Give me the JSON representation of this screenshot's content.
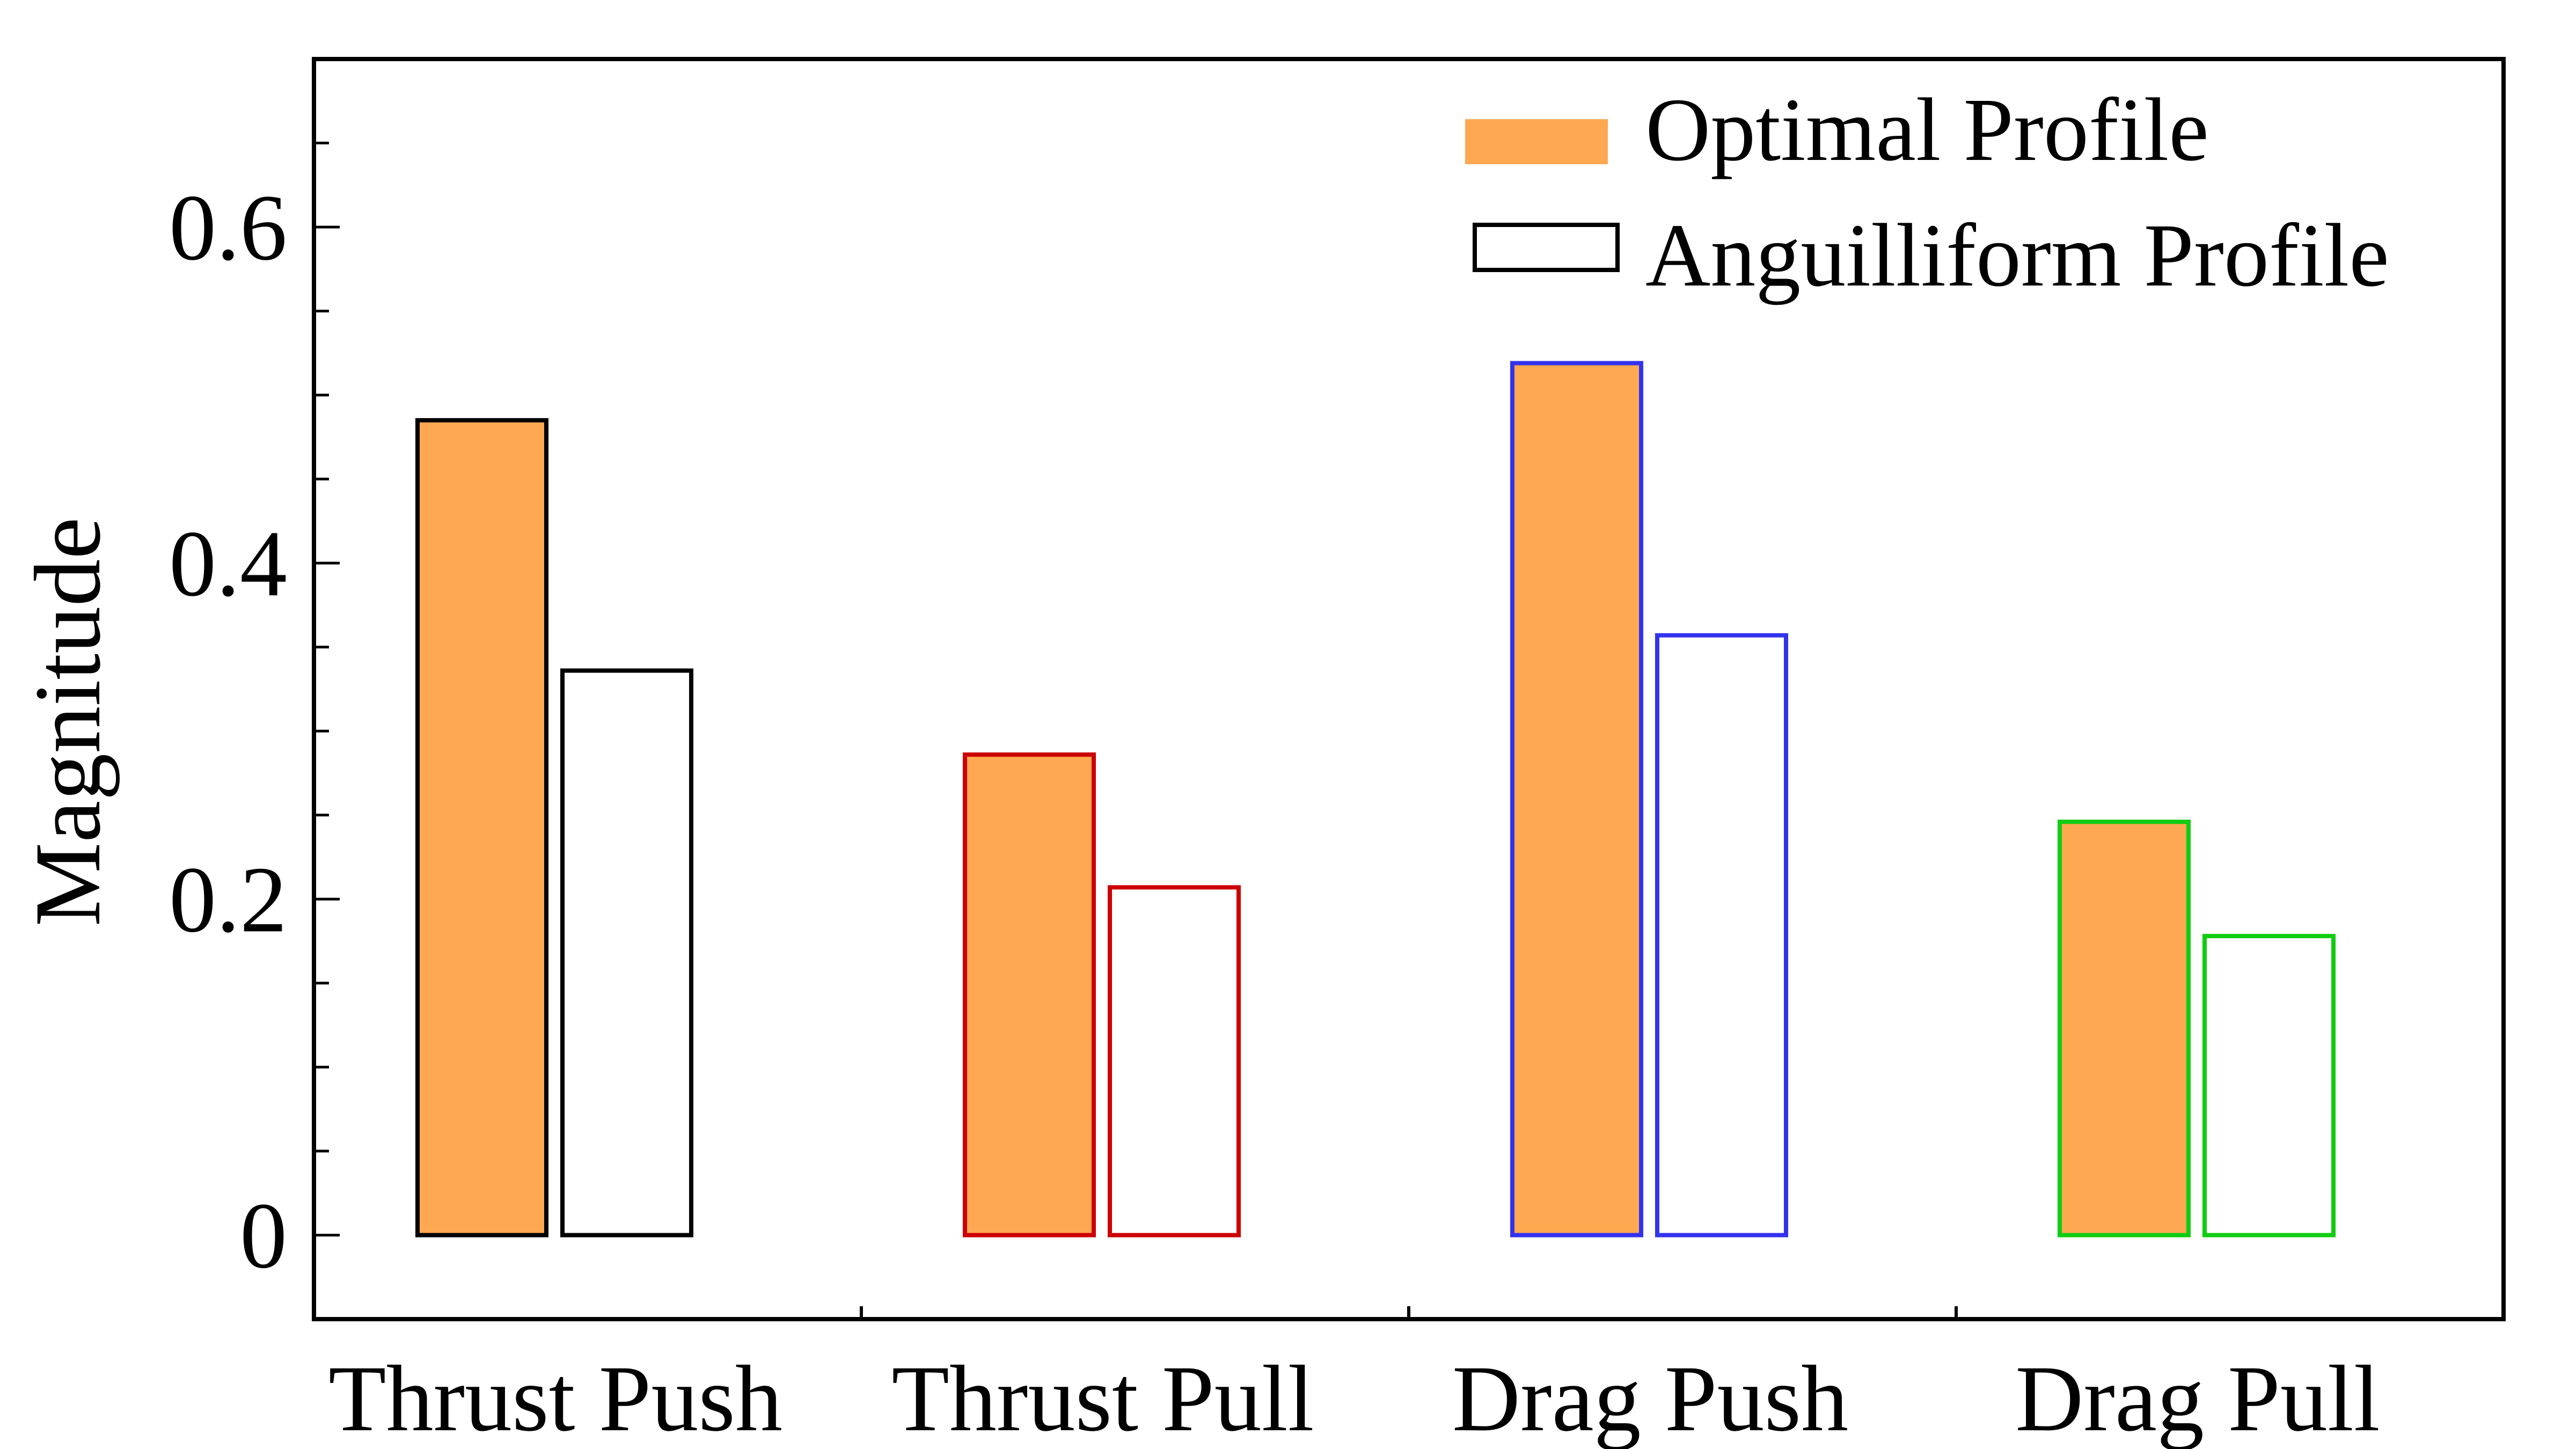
{
  "chart_data": {
    "type": "bar",
    "title": "",
    "xlabel": "",
    "ylabel": "Magnitude",
    "ylim": [
      -0.05,
      0.7
    ],
    "yticks": [
      0,
      0.2,
      0.4,
      0.6
    ],
    "ytick_labels": [
      "0",
      "0.2",
      "0.4",
      "0.6"
    ],
    "categories": [
      "Thrust Push",
      "Thrust Pull",
      "Drag Push",
      "Drag Pull"
    ],
    "category_edge_colors": [
      "#000000",
      "#cc0000",
      "#3333ee",
      "#11cc11"
    ],
    "series": [
      {
        "name": "Optimal Profile",
        "values": [
          0.485,
          0.286,
          0.519,
          0.246
        ],
        "fill": "#ffa852"
      },
      {
        "name": "Anguilliform Profile",
        "values": [
          0.336,
          0.207,
          0.357,
          0.178
        ],
        "fill": "#ffffff"
      }
    ],
    "legend_position": "top-right",
    "grid": false
  }
}
